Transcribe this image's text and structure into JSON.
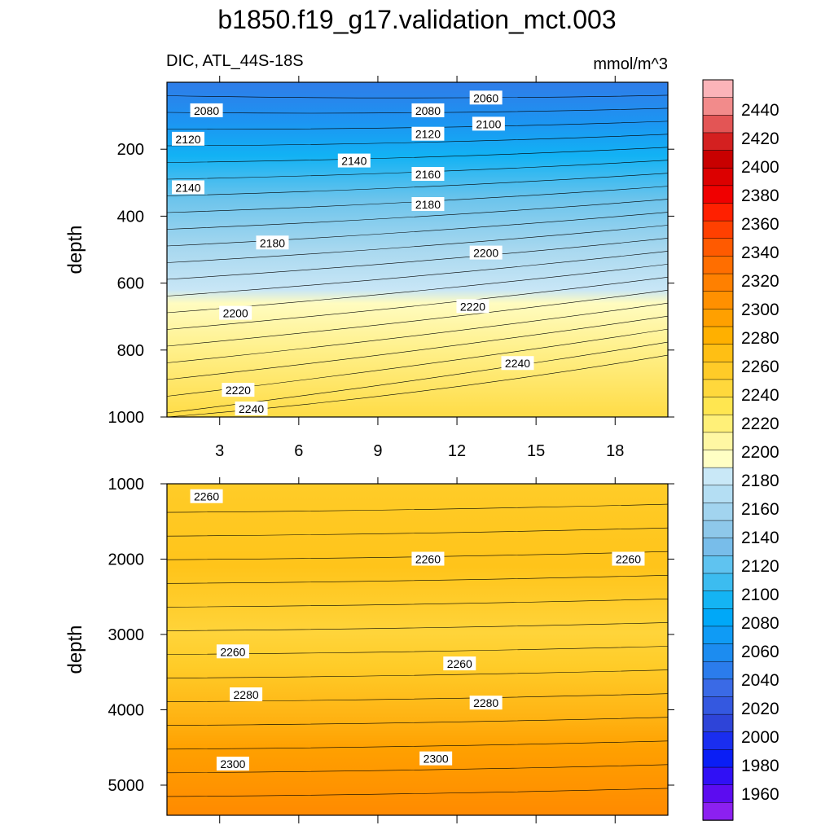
{
  "figure": {
    "title": "b1850.f19_g17.validation_mct.003",
    "left_label": "DIC, ATL_44S-18S",
    "right_label": "mmol/m^3"
  },
  "chart_data": [
    {
      "type": "contour",
      "panel": "upper",
      "ylabel": "depth",
      "xlabel": "",
      "x_ticks": [
        3,
        6,
        9,
        12,
        15,
        18
      ],
      "xlim": [
        1,
        20
      ],
      "y_ticks": [
        200,
        400,
        600,
        800,
        1000
      ],
      "ylim": [
        1000,
        0
      ],
      "contour_labels": [
        {
          "text": "2060",
          "x": 13.1,
          "y": 47
        },
        {
          "text": "2080",
          "x": 2.5,
          "y": 85
        },
        {
          "text": "2080",
          "x": 10.9,
          "y": 85
        },
        {
          "text": "2100",
          "x": 13.2,
          "y": 125
        },
        {
          "text": "2120",
          "x": 1.8,
          "y": 170
        },
        {
          "text": "2120",
          "x": 10.9,
          "y": 155
        },
        {
          "text": "2140",
          "x": 0.9,
          "y": 315
        },
        {
          "text": "2140",
          "x": 8.1,
          "y": 235
        },
        {
          "text": "2160",
          "x": 10.9,
          "y": 275
        },
        {
          "text": "2180",
          "x": 5.0,
          "y": 480
        },
        {
          "text": "2180",
          "x": 10.9,
          "y": 365
        },
        {
          "text": "2200",
          "x": 13.1,
          "y": 510
        },
        {
          "text": "2200",
          "x": 3.6,
          "y": 690
        },
        {
          "text": "2220",
          "x": 12.6,
          "y": 670
        },
        {
          "text": "2220",
          "x": 3.7,
          "y": 920
        },
        {
          "text": "2240",
          "x": 14.3,
          "y": 840
        },
        {
          "text": "2240",
          "x": 4.2,
          "y": 1120
        }
      ]
    },
    {
      "type": "contour",
      "panel": "lower",
      "ylabel": "depth",
      "xlabel": "",
      "x_ticks": [
        3,
        6,
        9,
        12,
        15,
        18
      ],
      "xlim": [
        1,
        20
      ],
      "y_ticks": [
        1000,
        2000,
        3000,
        4000,
        5000
      ],
      "ylim": [
        5400,
        1000
      ],
      "contour_labels": [
        {
          "text": "2260",
          "x": 2.5,
          "y": 1170
        },
        {
          "text": "2260",
          "x": 10.9,
          "y": 2000
        },
        {
          "text": "2260",
          "x": 18.5,
          "y": 2000
        },
        {
          "text": "2260",
          "x": 3.5,
          "y": 3230
        },
        {
          "text": "2260",
          "x": 12.1,
          "y": 3390
        },
        {
          "text": "2280",
          "x": 4.0,
          "y": 3800
        },
        {
          "text": "2280",
          "x": 13.1,
          "y": 3910
        },
        {
          "text": "2300",
          "x": 3.5,
          "y": 4720
        },
        {
          "text": "2300",
          "x": 11.2,
          "y": 4650
        }
      ]
    }
  ],
  "colorbar": {
    "labels": [
      "2440",
      "2420",
      "2400",
      "2380",
      "2360",
      "2340",
      "2320",
      "2300",
      "2280",
      "2260",
      "2240",
      "2220",
      "2200",
      "2180",
      "2160",
      "2140",
      "2120",
      "2100",
      "2080",
      "2060",
      "2040",
      "2020",
      "2000",
      "1980",
      "1960"
    ],
    "colors": [
      "#fbb4b9",
      "#f28b8b",
      "#e35555",
      "#d42020",
      "#c80000",
      "#dc0000",
      "#f00000",
      "#ff2000",
      "#ff4000",
      "#ff5a00",
      "#ff6e00",
      "#ff8000",
      "#ff9000",
      "#ffa000",
      "#ffb000",
      "#ffbf14",
      "#ffcb28",
      "#ffd83c",
      "#ffe650",
      "#fff078",
      "#fff7a3",
      "#ffffc4",
      "#c9e8f7",
      "#b4def3",
      "#a2d4ef",
      "#8ec8ea",
      "#78bdea",
      "#5fc3f0",
      "#3cbcf0",
      "#14b4f4",
      "#00a8f8",
      "#0f9bf5",
      "#1c8cf0",
      "#2b7cec",
      "#3a6ae6",
      "#3458e0",
      "#2e44d8",
      "#1a2ef0",
      "#0a1ef5",
      "#3010f5",
      "#5c0cf0",
      "#8c20f0"
    ]
  }
}
